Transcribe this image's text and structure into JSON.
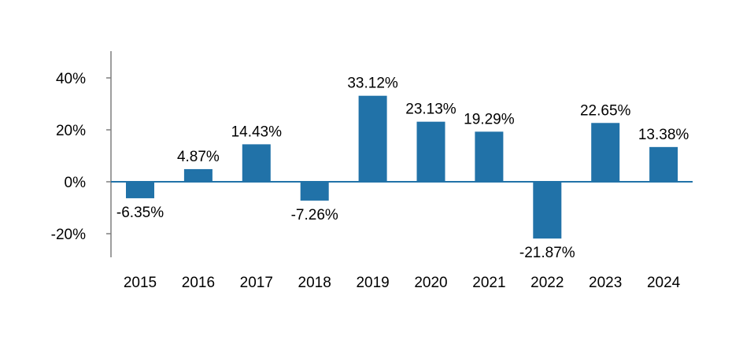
{
  "chart_data": {
    "type": "bar",
    "title": "",
    "xlabel": "",
    "ylabel": "",
    "categories": [
      "2015",
      "2016",
      "2017",
      "2018",
      "2019",
      "2020",
      "2021",
      "2022",
      "2023",
      "2024"
    ],
    "values": [
      -6.35,
      4.87,
      14.43,
      -7.26,
      33.12,
      23.13,
      19.29,
      -21.87,
      22.65,
      13.38
    ],
    "data_labels": [
      "-6.35%",
      "4.87%",
      "14.43%",
      "-7.26%",
      "33.12%",
      "23.13%",
      "19.29%",
      "-21.87%",
      "22.65%",
      "13.38%"
    ],
    "y_ticks": [
      40,
      20,
      0,
      -20
    ],
    "y_tick_labels": [
      "40%",
      "20%",
      "0%",
      "-20%"
    ],
    "ylim": [
      -29,
      51
    ],
    "grid": false,
    "legend": "none",
    "colors": {
      "bar": "#2172A8",
      "axis": "#7F7F7F",
      "zero_line": "#2172A8"
    }
  }
}
